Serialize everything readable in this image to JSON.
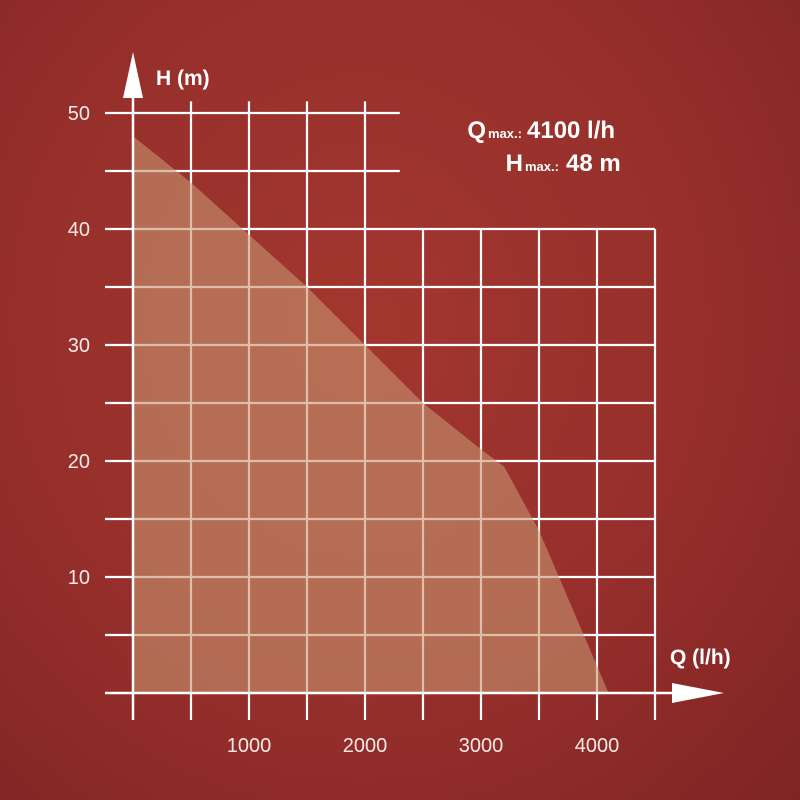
{
  "chart_data": {
    "type": "area",
    "title": "",
    "xlabel": "Q (l/h)",
    "ylabel": "H (m)",
    "xlim": [
      0,
      4500
    ],
    "ylim": [
      0,
      50
    ],
    "x_ticks": [
      1000,
      2000,
      3000,
      4000
    ],
    "y_ticks": [
      10,
      20,
      30,
      40,
      50
    ],
    "grid": true,
    "x": [
      0,
      500,
      1000,
      1500,
      2000,
      2500,
      3000,
      3200,
      3500,
      3800,
      4100
    ],
    "series": [
      {
        "values": [
          48,
          44,
          39.5,
          35,
          30,
          25,
          21,
          19.5,
          14,
          7,
          0
        ]
      }
    ],
    "annotations": {
      "q_label": "Q",
      "q_sub": "max.:",
      "q_value": "4100 l/h",
      "h_label": "H",
      "h_sub": "max.:",
      "h_value": "48 m"
    }
  },
  "colors": {
    "background": "#962f2b",
    "grid": "#ffffff",
    "fill": "#c79570",
    "fill_opacity": 0.6
  }
}
